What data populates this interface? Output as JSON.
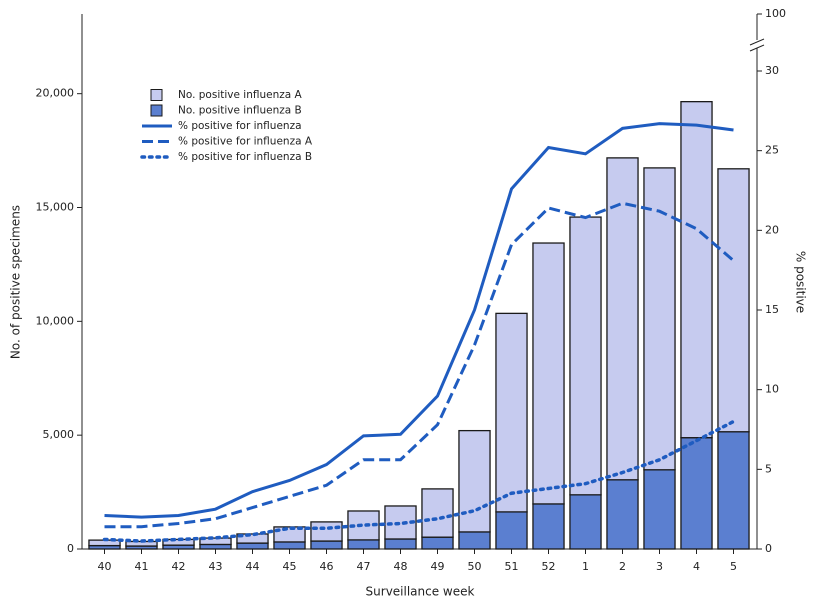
{
  "chart_data": {
    "type": "bar_line",
    "x_label": "Surveillance week",
    "y_label": "No. of positive specimens",
    "y2_label": "% positive",
    "categories": [
      "40",
      "41",
      "42",
      "43",
      "44",
      "45",
      "46",
      "47",
      "48",
      "49",
      "50",
      "51",
      "52",
      "1",
      "2",
      "3",
      "4",
      "5"
    ],
    "series": [
      {
        "name": "No. positive influenza B",
        "type": "bar",
        "color": "#5b7fd0",
        "values": [
          150,
          130,
          170,
          200,
          260,
          310,
          350,
          400,
          440,
          520,
          750,
          1630,
          1980,
          2380,
          3040,
          3480,
          4890,
          5150
        ]
      },
      {
        "name": "No. positive influenza A",
        "type": "bar",
        "color": "#c6cbef",
        "values": [
          240,
          200,
          250,
          280,
          400,
          660,
          840,
          1270,
          1450,
          2120,
          4450,
          8720,
          11460,
          12200,
          14140,
          13260,
          14760,
          11550
        ]
      },
      {
        "name": "% positive for influenza",
        "type": "line",
        "style": "solid",
        "axis": "y2",
        "color": "#1f5cc0",
        "values": [
          2.1,
          2.0,
          2.1,
          2.5,
          3.6,
          4.3,
          5.3,
          7.1,
          7.2,
          9.6,
          15.0,
          22.6,
          25.2,
          24.8,
          26.4,
          26.7,
          26.6,
          26.3
        ]
      },
      {
        "name": "% positive for influenza A",
        "type": "line",
        "style": "dashed",
        "axis": "y2",
        "color": "#1f5cc0",
        "values": [
          1.4,
          1.4,
          1.6,
          1.9,
          2.6,
          3.3,
          4.0,
          5.6,
          5.6,
          7.8,
          12.8,
          19.1,
          21.4,
          20.8,
          21.7,
          21.2,
          20.1,
          18.1
        ]
      },
      {
        "name": "% positive for influenza B",
        "type": "line",
        "style": "dotted",
        "axis": "y2",
        "color": "#1f5cc0",
        "values": [
          0.6,
          0.5,
          0.6,
          0.7,
          0.9,
          1.3,
          1.3,
          1.5,
          1.6,
          1.9,
          2.4,
          3.5,
          3.8,
          4.1,
          4.8,
          5.6,
          6.8,
          8.0
        ]
      }
    ],
    "legend_order": [
      1,
      0,
      2,
      3,
      4
    ],
    "ylim": [
      0,
      23500
    ],
    "yticks": [
      0,
      {
        "value": 5000,
        "label": "5,000"
      },
      {
        "value": 10000,
        "label": "10,000"
      },
      {
        "value": 15000,
        "label": "15,000"
      },
      {
        "value": 20000,
        "label": "20,000"
      }
    ],
    "y2lim": [
      0,
      100
    ],
    "y2ticks": [
      0,
      5,
      10,
      15,
      20,
      25,
      30,
      100
    ],
    "y2_axis_break": true,
    "grid": false
  }
}
